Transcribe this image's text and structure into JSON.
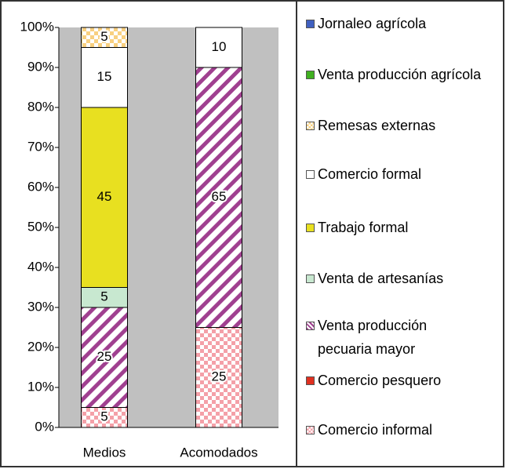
{
  "chart_data": {
    "type": "stacked_bar",
    "categories": [
      "Medios",
      "Acomodados"
    ],
    "ylim": [
      0,
      100
    ],
    "yticks": [
      {
        "value": 0,
        "label": "0%"
      },
      {
        "value": 10,
        "label": "10%"
      },
      {
        "value": 20,
        "label": "20%"
      },
      {
        "value": 30,
        "label": "30%"
      },
      {
        "value": 40,
        "label": "40%"
      },
      {
        "value": 50,
        "label": "50%"
      },
      {
        "value": 60,
        "label": "60%"
      },
      {
        "value": 70,
        "label": "70%"
      },
      {
        "value": 80,
        "label": "80%"
      },
      {
        "value": 90,
        "label": "90%"
      },
      {
        "value": 100,
        "label": "100%"
      }
    ],
    "legend": "right",
    "series": [
      {
        "name": "Comercio informal",
        "color": "#f4a0a8",
        "pattern": "checker",
        "values": [
          5,
          25
        ]
      },
      {
        "name": "Comercio pesquero",
        "color": "#e03020",
        "pattern": "solid",
        "values": [
          0,
          0
        ]
      },
      {
        "name": "Venta producción pecuaria mayor",
        "color": "#a04090",
        "pattern": "stripes",
        "values": [
          25,
          65
        ]
      },
      {
        "name": "Venta de artesanías",
        "color": "#c8e8d0",
        "pattern": "solid",
        "values": [
          5,
          0
        ]
      },
      {
        "name": "Trabajo formal",
        "color": "#e8e020",
        "pattern": "solid",
        "values": [
          45,
          0
        ]
      },
      {
        "name": "Comercio formal",
        "color": "#ffffff",
        "pattern": "solid",
        "values": [
          15,
          10
        ]
      },
      {
        "name": "Remesas externas",
        "color": "#f8d080",
        "pattern": "checker",
        "values": [
          5,
          0
        ]
      },
      {
        "name": "Venta producción agrícola",
        "color": "#40b020",
        "pattern": "solid",
        "values": [
          0,
          0
        ]
      },
      {
        "name": "Jornaleo agrícola",
        "color": "#4060c0",
        "pattern": "solid",
        "values": [
          0,
          0
        ]
      }
    ]
  }
}
